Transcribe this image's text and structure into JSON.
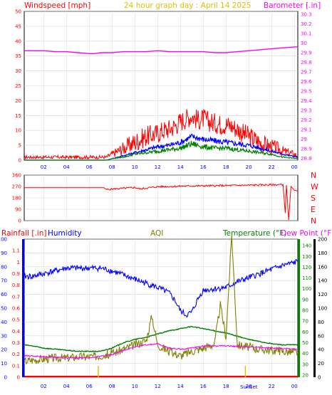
{
  "header": {
    "title": "24 hour graph day : April 14 2025",
    "left_label": "Windspeed [mph]",
    "right_label": "Barometer [.in]"
  },
  "lower_header": {
    "rainfall_label": "Rainfall [.in]",
    "humidity_label": "Humidity",
    "aqi_label": "AQI",
    "temperature_label": "Temperature (°F)",
    "dewpoint_label": "Dew Point (°F)"
  },
  "compass": {
    "labels": [
      "N",
      "W",
      "S",
      "E",
      "N"
    ]
  },
  "sun_labels": {
    "rise": "Sun",
    "set": "Set"
  },
  "colors": {
    "bg": "#ffffff",
    "grid": "#d8d8d8",
    "axis": "#000000",
    "wind_gust": "#ff0000",
    "wind_avg": "#008000",
    "wind_mean": "#0000ff",
    "barometer": "#ff00ff",
    "direction": "#ff0000",
    "humidity": "#0000ff",
    "temperature": "#008000",
    "dewpoint": "#808000",
    "aqi": "#808000",
    "rainfall": "#ff0000",
    "indoor_dew": "#ff00ff",
    "title": "#e0c000"
  },
  "chart_data": [
    {
      "type": "line",
      "name": "wind",
      "x_ticks": [
        "02",
        "04",
        "06",
        "08",
        "10",
        "12",
        "14",
        "16",
        "18",
        "20",
        "22",
        "00"
      ],
      "xlim": [
        0.3,
        24.3
      ],
      "y_left_ticks": [
        0,
        5,
        10,
        15,
        20,
        25,
        30,
        35,
        40,
        45,
        50
      ],
      "ylim_left": [
        0,
        50
      ],
      "y_right_ticks": [
        28.8,
        28.9,
        29,
        29.1,
        29.2,
        29.3,
        29.4,
        29.5,
        29.6,
        29.7,
        29.8,
        29.9,
        30,
        30.1,
        30.2,
        30.3
      ],
      "ylim_right": [
        28.78,
        30.33
      ],
      "series": [
        {
          "color": "#ff0000",
          "role": "gust",
          "x": [
            0.3,
            1,
            2,
            3,
            4,
            5,
            6,
            7,
            7.5,
            8,
            8.5,
            9,
            9.5,
            10,
            10.5,
            11,
            11.5,
            12,
            12.5,
            13,
            13.5,
            14,
            14.5,
            15,
            15.5,
            16,
            16.5,
            17,
            17.5,
            18,
            18.5,
            19,
            19.5,
            20,
            20.5,
            21,
            21.5,
            22,
            22.5,
            23,
            23.5,
            24,
            24.3
          ],
          "y": [
            1,
            1,
            1,
            1,
            1,
            1,
            1,
            1,
            1,
            2,
            3,
            4,
            5,
            6,
            7,
            8,
            8.5,
            9,
            10,
            10.5,
            11.5,
            13,
            14,
            15,
            13.5,
            14,
            13,
            12.5,
            12,
            12,
            11.5,
            10.5,
            9,
            8,
            7,
            6,
            5,
            4.5,
            4,
            3,
            2.5,
            2,
            1.5
          ]
        },
        {
          "color": "#0000ff",
          "role": "mean",
          "x": [
            0.3,
            7.5,
            8,
            9,
            10,
            11,
            12,
            13,
            14,
            15,
            16,
            17,
            18,
            19,
            20,
            21,
            22,
            23,
            24.3
          ],
          "y": [
            0,
            0,
            0.5,
            1.5,
            2.5,
            3.5,
            4.5,
            5,
            6,
            8,
            7,
            6.5,
            6,
            5.5,
            5,
            4,
            3,
            2,
            1
          ]
        },
        {
          "color": "#008000",
          "role": "average",
          "x": [
            0.3,
            7.5,
            8,
            9,
            10,
            11,
            12,
            13,
            14,
            15,
            16,
            17,
            18,
            19,
            20,
            21,
            22,
            23,
            24.3
          ],
          "y": [
            0,
            0,
            0.5,
            1,
            2,
            2.5,
            3,
            3.5,
            4,
            5.5,
            4.5,
            4,
            4,
            3.5,
            3,
            2.5,
            2,
            1,
            0.5
          ]
        },
        {
          "color": "#ff00ff",
          "role": "barometer",
          "axis": "right",
          "x": [
            0.3,
            1,
            2,
            3,
            4,
            5,
            6,
            6.5,
            7,
            8,
            9,
            10,
            11,
            12,
            13,
            14,
            15,
            16,
            17,
            18,
            19,
            20,
            21,
            22,
            23,
            24,
            24.3
          ],
          "y": [
            29.92,
            29.92,
            29.92,
            29.91,
            29.91,
            29.9,
            29.89,
            29.89,
            29.9,
            29.9,
            29.91,
            29.91,
            29.91,
            29.92,
            29.91,
            29.91,
            29.91,
            29.91,
            29.9,
            29.9,
            29.91,
            29.92,
            29.93,
            29.94,
            29.95,
            29.96,
            29.96
          ]
        }
      ]
    },
    {
      "type": "line",
      "name": "wind direction",
      "xlim": [
        0.3,
        24.3
      ],
      "y_ticks": [
        0,
        90,
        180,
        270,
        360
      ],
      "ylim": [
        0,
        360
      ],
      "series": [
        {
          "color": "#ff0000",
          "x": [
            0.3,
            7,
            7.3,
            7.5,
            8,
            9,
            10,
            10.5,
            11,
            11.5,
            12,
            13,
            14,
            15,
            16,
            17,
            18,
            19,
            20,
            21,
            22,
            23,
            23.2,
            23.3,
            23.5,
            23.7,
            24,
            24.3
          ],
          "y": [
            260,
            260,
            260,
            245,
            250,
            255,
            262,
            250,
            258,
            262,
            268,
            270,
            272,
            274,
            275,
            276,
            277,
            279,
            280,
            282,
            283,
            285,
            60,
            280,
            5,
            270,
            240,
            235
          ]
        }
      ]
    },
    {
      "type": "line",
      "name": "humidity temperature aqi",
      "x_ticks": [
        "02",
        "04",
        "06",
        "08",
        "10",
        "12",
        "14",
        "16",
        "18",
        "20",
        "22",
        "00"
      ],
      "xlim": [
        0.3,
        24.3
      ],
      "y_rain_ticks": [
        0,
        0.1,
        0.2,
        0.3,
        0.4,
        0.5,
        0.6,
        0.7,
        0.8,
        0.9,
        1,
        1.1
      ],
      "ylim_rain": [
        0,
        1.2
      ],
      "y_humidity_ticks": [
        0,
        10,
        20,
        30,
        40,
        50,
        60,
        70,
        80,
        90,
        100
      ],
      "ylim_humidity": [
        0,
        100
      ],
      "y_temp_ticks": [
        20,
        30,
        40,
        50,
        60,
        70,
        80,
        90,
        100,
        110,
        120,
        130,
        140
      ],
      "ylim_temp": [
        18,
        146
      ],
      "y_dew_ticks": [
        0,
        20,
        40,
        60,
        80,
        100,
        120,
        140,
        160,
        180,
        200
      ],
      "ylim_dew": [
        0,
        200
      ],
      "series": [
        {
          "color": "#0000ff",
          "role": "humidity",
          "x": [
            0.3,
            1,
            2,
            3,
            4,
            5,
            6,
            7,
            8,
            9,
            10,
            11,
            12,
            12.5,
            13,
            13.5,
            14,
            14.5,
            15,
            15.5,
            16,
            17,
            18,
            19,
            20,
            21,
            22,
            23,
            24,
            24.3
          ],
          "y": [
            73,
            73,
            75,
            77,
            79,
            79,
            79,
            79,
            77,
            74,
            71,
            68,
            65,
            63,
            61,
            56,
            48,
            45,
            47,
            56,
            63,
            64,
            65,
            69,
            72,
            75,
            78,
            81,
            83,
            84
          ]
        },
        {
          "color": "#008000",
          "role": "temperature",
          "x": [
            0.3,
            1,
            2,
            3,
            4,
            5,
            6,
            7,
            8,
            9,
            10,
            11,
            12,
            13,
            14,
            14.5,
            15,
            15.5,
            16,
            17,
            18,
            19,
            20,
            21,
            22,
            23,
            24,
            24.3
          ],
          "y": [
            48,
            47,
            45,
            44,
            43,
            42,
            42,
            42,
            45,
            50,
            53,
            55,
            58,
            61,
            63,
            64,
            65,
            64,
            63,
            61,
            59,
            56,
            53,
            51,
            49,
            48,
            48,
            48
          ]
        },
        {
          "color": "#808000",
          "role": "aqi",
          "x": [
            0.3,
            1,
            2,
            3,
            4,
            5,
            6,
            7,
            8,
            9,
            10,
            11,
            11.5,
            12,
            13,
            14,
            15,
            16,
            17,
            17.5,
            18,
            18.5,
            19,
            20,
            21,
            22,
            23,
            24,
            24.3
          ],
          "y": [
            33,
            34,
            35,
            36,
            36,
            37,
            37,
            38,
            40,
            44,
            48,
            52,
            75,
            48,
            42,
            38,
            42,
            45,
            49,
            85,
            55,
            150,
            48,
            46,
            44,
            43,
            42,
            41,
            41
          ]
        },
        {
          "color": "#ff00ff",
          "role": "indoor dew",
          "x": [
            0.3,
            2,
            4,
            6,
            8,
            9,
            10,
            11,
            12,
            13,
            14,
            15,
            16,
            18,
            20,
            22,
            24.3
          ],
          "y": [
            38,
            37,
            36,
            36,
            39,
            43,
            46,
            48,
            49,
            45,
            44,
            45,
            47,
            47,
            46,
            45,
            44
          ]
        },
        {
          "color": "#e0c000",
          "role": "sun markers",
          "x": [
            6.8,
            19.7
          ],
          "y": [
            0,
            0
          ]
        }
      ]
    }
  ]
}
